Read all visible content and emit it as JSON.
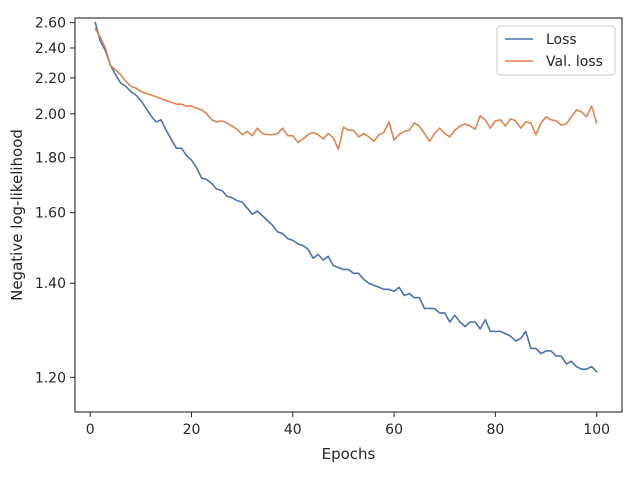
{
  "chart_data": {
    "type": "line",
    "xlabel": "Epochs",
    "ylabel": "Negative log-likelihood",
    "xlim": [
      -3,
      105
    ],
    "ylim": [
      1.14,
      2.64
    ],
    "yscale": "reciprocal",
    "xticks": [
      0,
      20,
      40,
      60,
      80,
      100
    ],
    "yticks": [
      1.2,
      1.4,
      1.6,
      1.8,
      2.0,
      2.2,
      2.4,
      2.6
    ],
    "ytick_labels": [
      "1.20",
      "1.40",
      "1.60",
      "1.80",
      "2.00",
      "2.20",
      "2.40",
      "2.60"
    ],
    "grid": false,
    "legend_position": "top-right",
    "x": [
      1,
      2,
      3,
      4,
      5,
      6,
      7,
      8,
      9,
      10,
      11,
      12,
      13,
      14,
      15,
      16,
      17,
      18,
      19,
      20,
      21,
      22,
      23,
      24,
      25,
      26,
      27,
      28,
      29,
      30,
      31,
      32,
      33,
      34,
      35,
      36,
      37,
      38,
      39,
      40,
      41,
      42,
      43,
      44,
      45,
      46,
      47,
      48,
      49,
      50,
      51,
      52,
      53,
      54,
      55,
      56,
      57,
      58,
      59,
      60,
      61,
      62,
      63,
      64,
      65,
      66,
      67,
      68,
      69,
      70,
      71,
      72,
      73,
      74,
      75,
      76,
      77,
      78,
      79,
      80,
      81,
      82,
      83,
      84,
      85,
      86,
      87,
      88,
      89,
      90,
      91,
      92,
      93,
      94,
      95,
      96,
      97,
      98,
      99,
      100
    ],
    "series": [
      {
        "name": "Loss",
        "color": "#4c72b0",
        "values": [
          2.6,
          2.45,
          2.38,
          2.28,
          2.22,
          2.17,
          2.15,
          2.12,
          2.1,
          2.07,
          2.03,
          1.99,
          1.96,
          1.97,
          1.92,
          1.88,
          1.84,
          1.84,
          1.81,
          1.79,
          1.76,
          1.72,
          1.715,
          1.7,
          1.68,
          1.675,
          1.655,
          1.65,
          1.64,
          1.635,
          1.615,
          1.595,
          1.605,
          1.59,
          1.575,
          1.56,
          1.54,
          1.535,
          1.52,
          1.515,
          1.505,
          1.5,
          1.49,
          1.465,
          1.475,
          1.46,
          1.47,
          1.445,
          1.44,
          1.435,
          1.435,
          1.425,
          1.425,
          1.41,
          1.4,
          1.395,
          1.39,
          1.385,
          1.385,
          1.38,
          1.39,
          1.37,
          1.375,
          1.365,
          1.365,
          1.34,
          1.34,
          1.34,
          1.33,
          1.33,
          1.31,
          1.325,
          1.31,
          1.3,
          1.31,
          1.31,
          1.295,
          1.315,
          1.29,
          1.29,
          1.29,
          1.285,
          1.28,
          1.27,
          1.275,
          1.29,
          1.255,
          1.255,
          1.245,
          1.25,
          1.25,
          1.24,
          1.24,
          1.225,
          1.23,
          1.22,
          1.215,
          1.215,
          1.22,
          1.21
        ]
      },
      {
        "name": "Val. loss",
        "color": "#dd8452",
        "values": [
          2.55,
          2.48,
          2.4,
          2.28,
          2.25,
          2.22,
          2.18,
          2.15,
          2.14,
          2.12,
          2.11,
          2.1,
          2.09,
          2.08,
          2.07,
          2.06,
          2.05,
          2.05,
          2.04,
          2.04,
          2.03,
          2.02,
          2.0,
          1.97,
          1.96,
          1.965,
          1.955,
          1.94,
          1.925,
          1.9,
          1.915,
          1.895,
          1.93,
          1.905,
          1.9,
          1.9,
          1.905,
          1.93,
          1.895,
          1.895,
          1.865,
          1.88,
          1.9,
          1.91,
          1.9,
          1.88,
          1.905,
          1.885,
          1.835,
          1.935,
          1.92,
          1.92,
          1.89,
          1.905,
          1.89,
          1.87,
          1.9,
          1.91,
          1.96,
          1.875,
          1.9,
          1.915,
          1.92,
          1.955,
          1.94,
          1.905,
          1.87,
          1.905,
          1.93,
          1.905,
          1.89,
          1.92,
          1.94,
          1.95,
          1.94,
          1.925,
          1.99,
          1.97,
          1.93,
          1.965,
          1.97,
          1.94,
          1.975,
          1.965,
          1.93,
          1.96,
          1.955,
          1.9,
          1.955,
          1.985,
          1.97,
          1.965,
          1.945,
          1.95,
          1.985,
          2.02,
          2.01,
          1.985,
          2.04,
          1.955
        ]
      }
    ]
  }
}
